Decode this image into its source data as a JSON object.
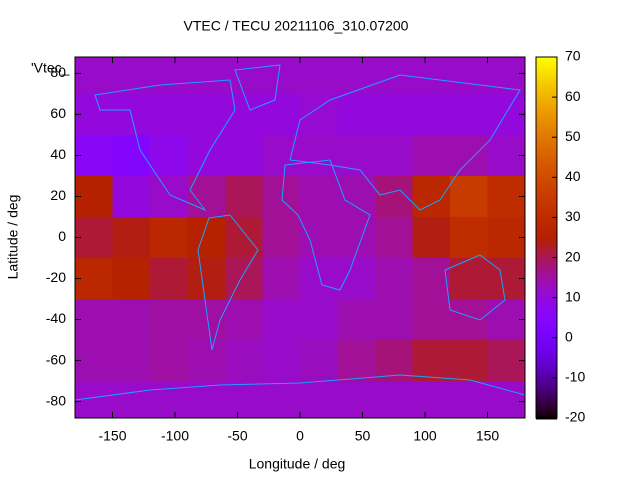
{
  "chart_data": {
    "type": "heatmap",
    "title": "VTEC / TECU 20211106_310.07200",
    "x_label": "Longitude / deg",
    "y_label": "Latitude / deg",
    "series_name": "'Vtec_",
    "x": [
      -165,
      -135,
      -105,
      -75,
      -45,
      -15,
      15,
      45,
      75,
      105,
      135,
      165
    ],
    "y": [
      80,
      60,
      40,
      20,
      0,
      -20,
      -40,
      -60,
      -80
    ],
    "z": [
      [
        12,
        12,
        12,
        12,
        12,
        12,
        12,
        12,
        12,
        12,
        12,
        12
      ],
      [
        10,
        10,
        10,
        10,
        10,
        10,
        11,
        10,
        10,
        10,
        10,
        10
      ],
      [
        6,
        4,
        8,
        10,
        10,
        12,
        12,
        12,
        12,
        14,
        14,
        12
      ],
      [
        25,
        10,
        12,
        16,
        20,
        16,
        14,
        14,
        18,
        28,
        35,
        30
      ],
      [
        22,
        24,
        28,
        26,
        22,
        16,
        14,
        14,
        16,
        24,
        30,
        28
      ],
      [
        28,
        26,
        22,
        24,
        20,
        14,
        12,
        12,
        14,
        16,
        22,
        22
      ],
      [
        14,
        14,
        15,
        15,
        14,
        12,
        12,
        14,
        14,
        16,
        16,
        14
      ],
      [
        14,
        14,
        15,
        14,
        13,
        12,
        13,
        16,
        18,
        22,
        22,
        20
      ],
      [
        12,
        12,
        12,
        12,
        12,
        12,
        12,
        12,
        12,
        12,
        12,
        12
      ]
    ],
    "xlim": [
      -180,
      180
    ],
    "xticks": [
      -150,
      -100,
      -50,
      0,
      50,
      100,
      150
    ],
    "ylim": [
      -88,
      88
    ],
    "yticks": [
      -80,
      -60,
      -40,
      -20,
      0,
      20,
      40,
      60,
      80
    ],
    "zlim": [
      -20,
      70
    ],
    "zticks": [
      -20,
      -10,
      0,
      10,
      20,
      30,
      40,
      50,
      60,
      70
    ]
  }
}
